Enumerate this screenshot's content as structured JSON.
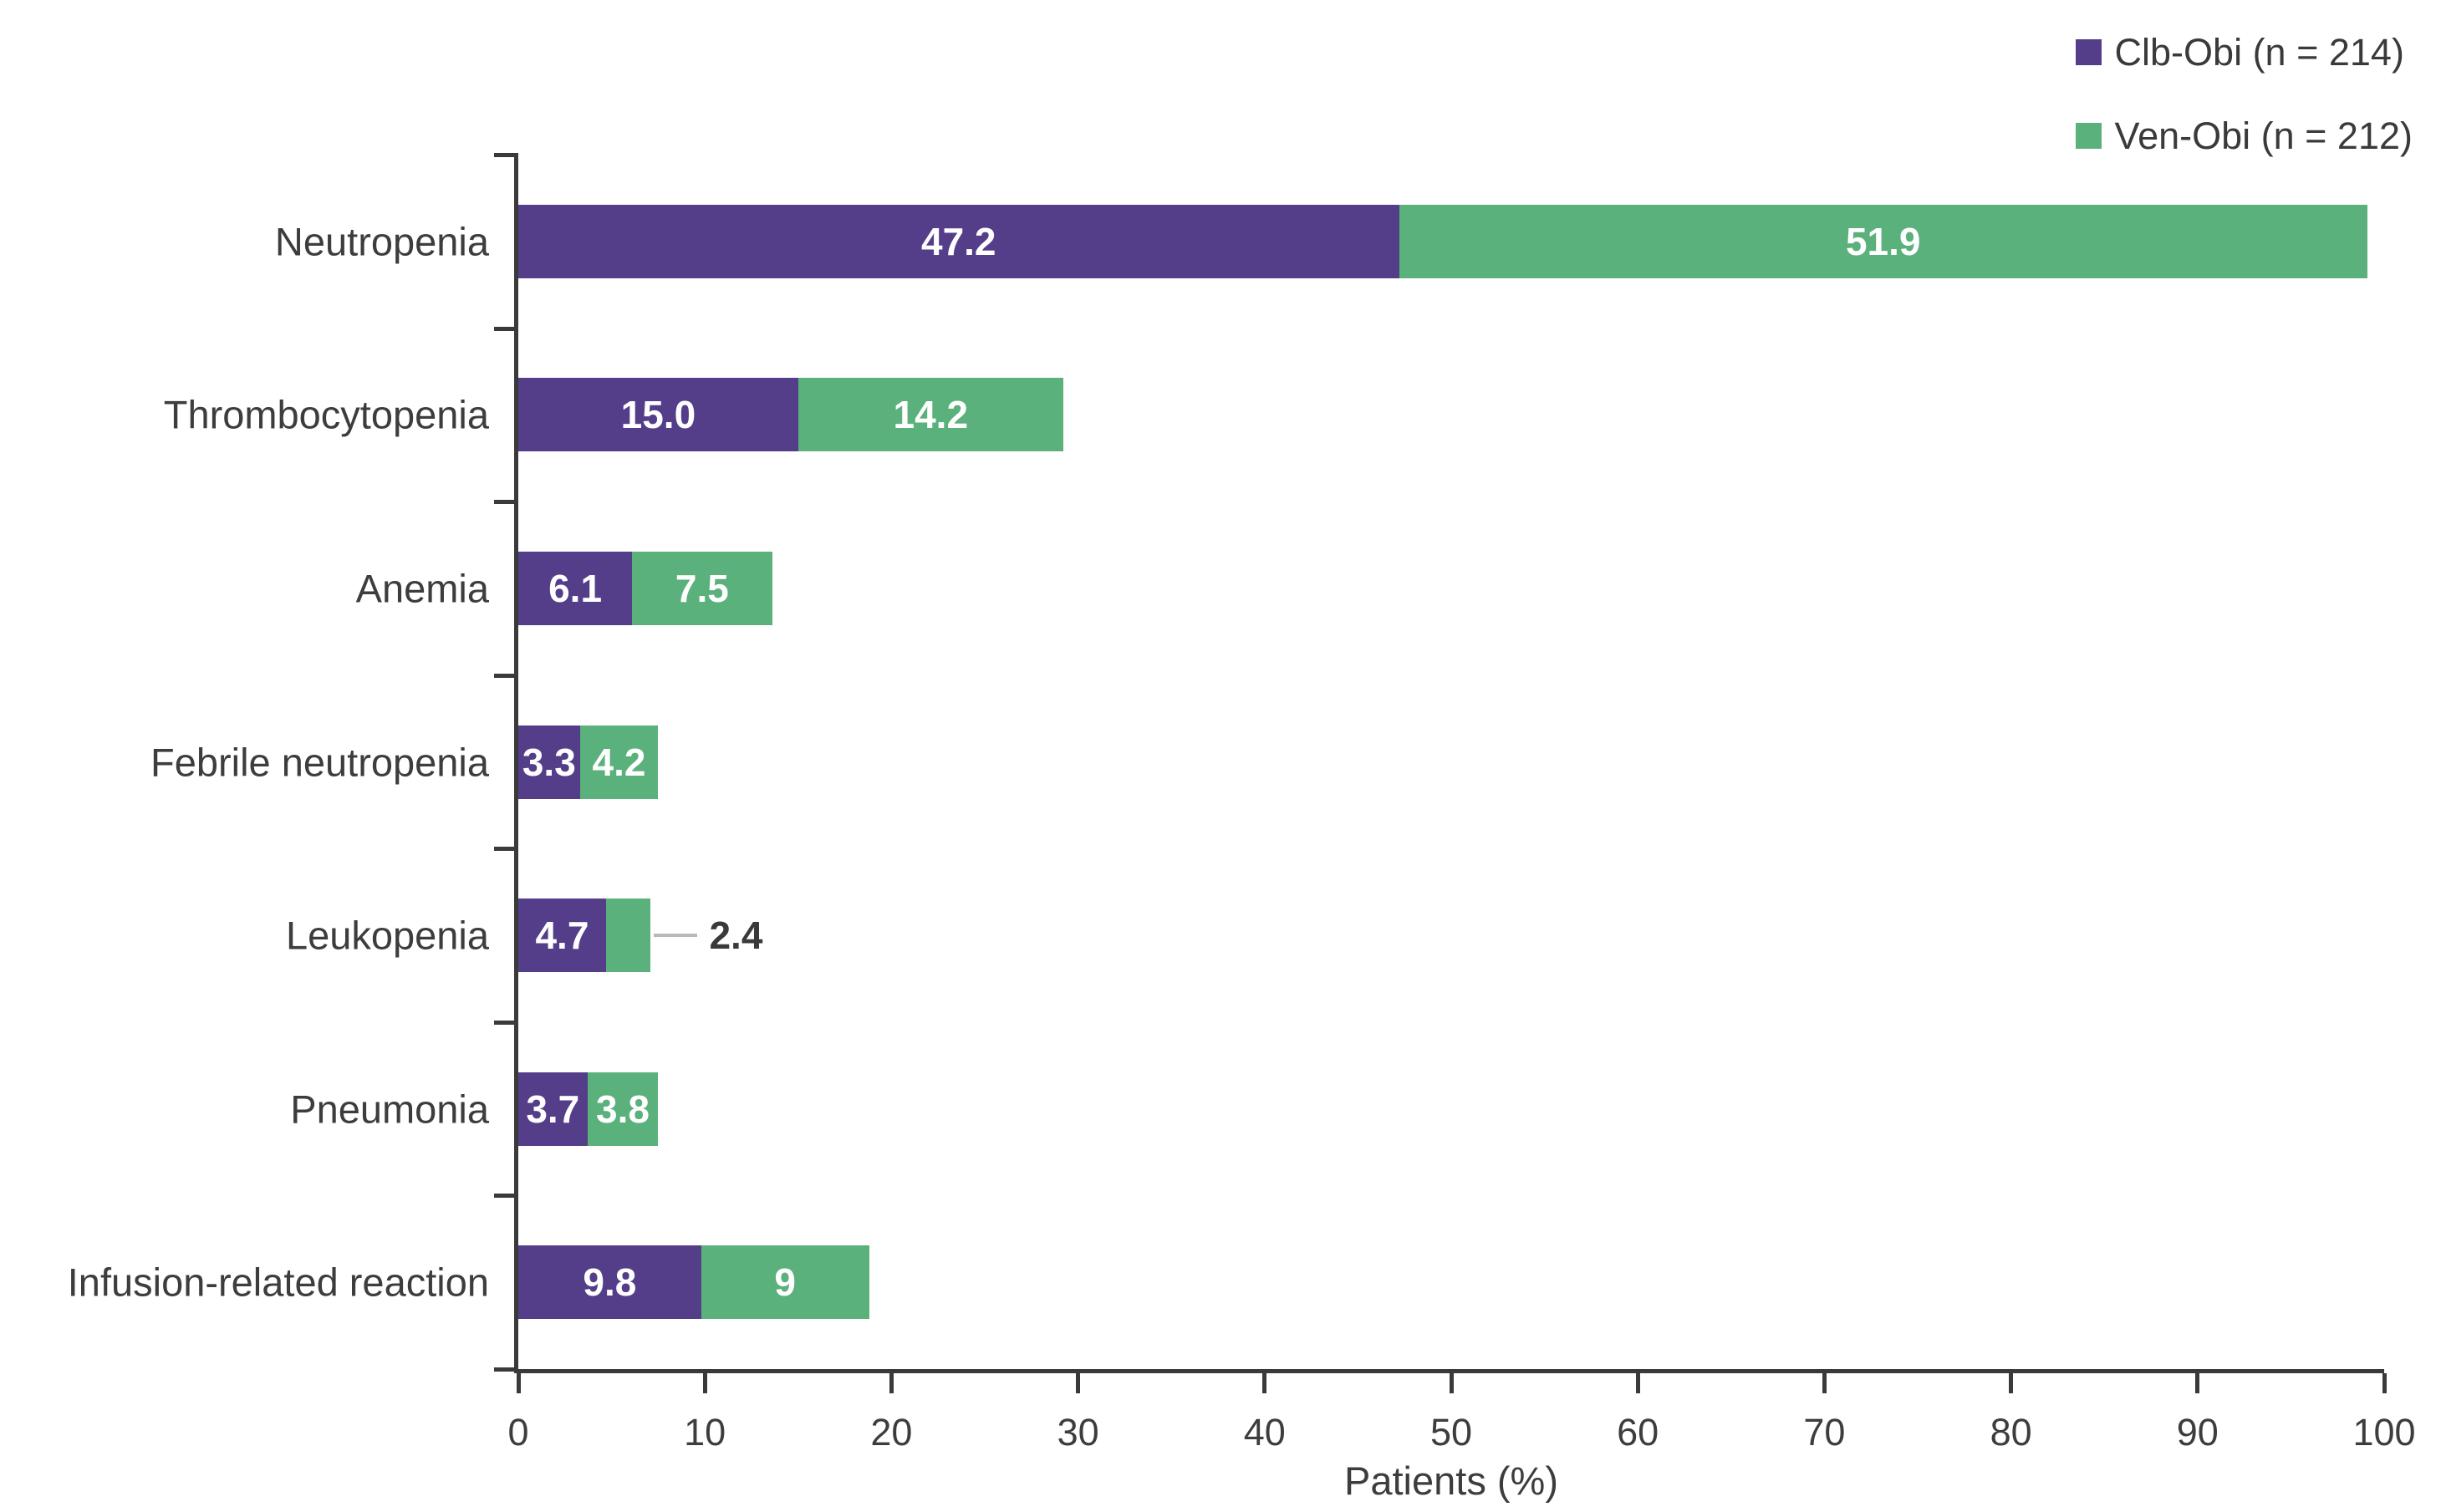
{
  "page": {
    "background": "#ffffff"
  },
  "style": {
    "axis_color": "#3a3a3a",
    "text_color": "#3d3d3d",
    "bar_value_text_color": "#ffffff",
    "leader_line_color": "#b9b9b9"
  },
  "chart_data": {
    "type": "bar",
    "orientation": "horizontal",
    "stacked": true,
    "title": "",
    "xlabel": "Patients (%)",
    "xlim": [
      0,
      100
    ],
    "xticks": [
      0,
      10,
      20,
      30,
      40,
      50,
      60,
      70,
      80,
      90,
      100
    ],
    "grid": false,
    "legend_position": "top-right",
    "categories": [
      "Neutropenia",
      "Thrombocytopenia",
      "Anemia",
      "Febrile neutropenia",
      "Leukopenia",
      "Pneumonia",
      "Infusion-related reaction"
    ],
    "series": [
      {
        "name": "Clb-Obi (n = 214)",
        "color": "#543e8a",
        "values": [
          47.2,
          15.0,
          6.1,
          3.3,
          4.7,
          3.7,
          9.8
        ],
        "value_labels": [
          "47.2",
          "15.0",
          "6.1",
          "3.3",
          "4.7",
          "3.7",
          "9.8"
        ]
      },
      {
        "name": "Ven-Obi (n = 212)",
        "color": "#5bb17b",
        "values": [
          51.9,
          14.2,
          7.5,
          4.2,
          2.4,
          3.8,
          9.0
        ],
        "value_labels": [
          "51.9",
          "14.2",
          "7.5",
          "4.2",
          "2.4",
          "3.8",
          "9"
        ]
      }
    ],
    "outside_label": {
      "series_index": 1,
      "category_index": 4,
      "text": "2.4"
    }
  }
}
